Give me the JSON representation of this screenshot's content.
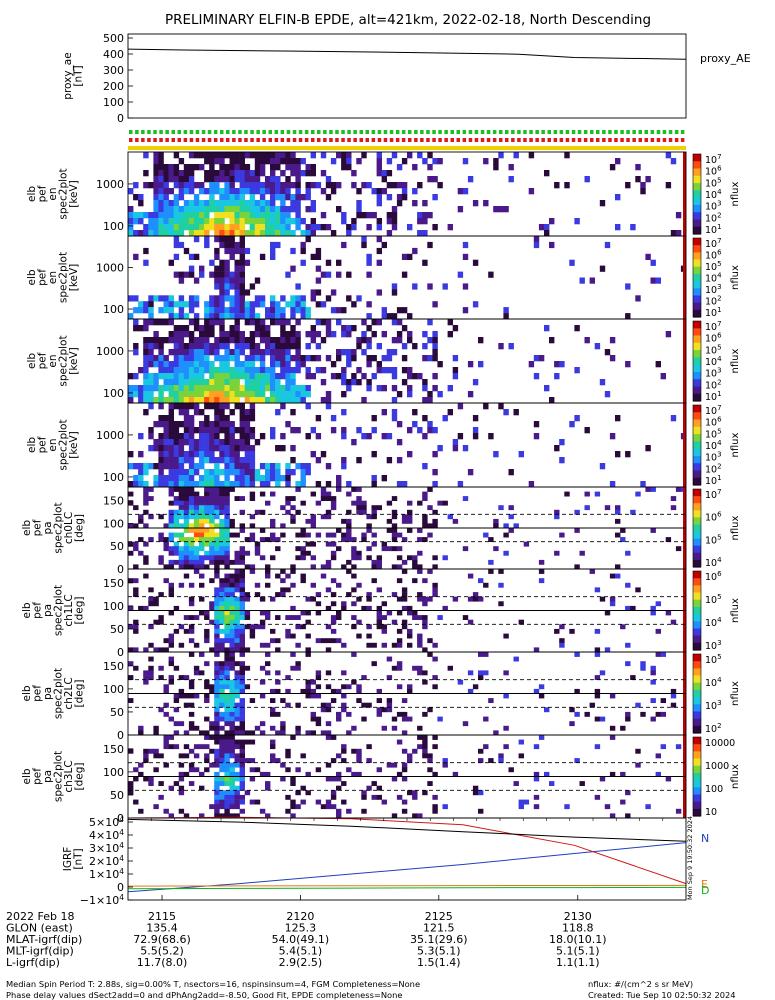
{
  "title": "PRELIMINARY ELFIN-B EPDE, alt=421km, 2022-02-18, North Descending",
  "colors": {
    "fg": "#000000",
    "ae_line": "#000000",
    "bt_blue": "#1f3fc0",
    "bt_red": "#d01818",
    "bt_green": "#10b020",
    "bt_orange": "#e07b10",
    "flag_green": "#18c020",
    "flag_red": "#e01818",
    "flag_yellow": "#f0d000"
  },
  "colormap": [
    "#ffffff",
    "#2a0a3a",
    "#4a1a8a",
    "#3a3ae0",
    "#1f8fff",
    "#19c7e0",
    "#21d0a0",
    "#7ad33a",
    "#f0e020",
    "#ffa020",
    "#ff4a10",
    "#c00000"
  ],
  "flags": {
    "green_count": 92,
    "red_count": 92
  },
  "chart_data": [
    {
      "id": "ae",
      "type": "line",
      "ylabel_lines": [
        "proxy_ae",
        "[nT]"
      ],
      "yticks": [
        "500",
        "400",
        "300",
        "200",
        "100",
        "0"
      ],
      "ylim": [
        0,
        500
      ],
      "x": [
        0,
        0.1,
        0.3,
        0.5,
        0.7,
        0.8,
        1.0
      ],
      "values": [
        410,
        405,
        398,
        390,
        380,
        360,
        350
      ],
      "legend": "proxy_AE"
    },
    {
      "id": "en1",
      "type": "heatmap",
      "ylabel_lines": [
        "elb",
        "pef",
        "en",
        "spec2plot",
        "[keV]"
      ],
      "yticks": [
        "1000",
        "100"
      ],
      "ylog": true,
      "cbar_ticks": [
        "10^7",
        "10^6",
        "10^5",
        "10^4",
        "10^3",
        "10^2",
        "10^1"
      ],
      "cbar_label": "nflux",
      "intensity": 1.0,
      "core": [
        0.04,
        0.3
      ]
    },
    {
      "id": "en2",
      "type": "heatmap",
      "ylabel_lines": [
        "elb",
        "pef",
        "en",
        "spec2plot",
        "[keV]"
      ],
      "yticks": [
        "1000",
        "100"
      ],
      "ylog": true,
      "cbar_ticks": [
        "10^7",
        "10^6",
        "10^5",
        "10^4",
        "10^3",
        "10^2",
        "10^1"
      ],
      "cbar_label": "nflux",
      "intensity": 0.45,
      "core": [
        0.15,
        0.2
      ]
    },
    {
      "id": "en3",
      "type": "heatmap",
      "ylabel_lines": [
        "elb",
        "pef",
        "en",
        "spec2plot",
        "[keV]"
      ],
      "yticks": [
        "1000",
        "100"
      ],
      "ylog": true,
      "cbar_ticks": [
        "10^7",
        "10^6",
        "10^5",
        "10^4",
        "10^3",
        "10^2",
        "10^1"
      ],
      "cbar_label": "nflux",
      "intensity": 1.0,
      "core": [
        0.02,
        0.3
      ]
    },
    {
      "id": "en4",
      "type": "heatmap",
      "ylabel_lines": [
        "elb",
        "pef",
        "en",
        "spec2plot",
        "[keV]"
      ],
      "yticks": [
        "1000",
        "100"
      ],
      "ylog": true,
      "cbar_ticks": [
        "10^7",
        "10^6",
        "10^5",
        "10^4",
        "10^3",
        "10^2",
        "10^1"
      ],
      "cbar_label": "nflux",
      "intensity": 0.5,
      "core": [
        0.05,
        0.22
      ]
    },
    {
      "id": "pa0",
      "type": "heatmap",
      "ylabel_lines": [
        "elb",
        "pef",
        "pa",
        "spec2plot",
        "ch0LC",
        "[deg]"
      ],
      "yticks": [
        "150",
        "100",
        "50",
        "0"
      ],
      "ylim": [
        0,
        180
      ],
      "cbar_ticks": [
        "10^7",
        "10^6",
        "10^5",
        "10^4"
      ],
      "cbar_label": "nflux",
      "intensity": 0.9,
      "core": [
        0.07,
        0.18
      ]
    },
    {
      "id": "pa1",
      "type": "heatmap",
      "ylabel_lines": [
        "elb",
        "pef",
        "pa",
        "spec2plot",
        "ch1LC",
        "[deg]"
      ],
      "yticks": [
        "150",
        "100",
        "50",
        "0"
      ],
      "ylim": [
        0,
        180
      ],
      "cbar_ticks": [
        "10^6",
        "10^5",
        "10^4",
        "10^3"
      ],
      "cbar_label": "nflux",
      "intensity": 0.75,
      "core": [
        0.15,
        0.2
      ]
    },
    {
      "id": "pa2",
      "type": "heatmap",
      "ylabel_lines": [
        "elb",
        "pef",
        "pa",
        "spec2plot",
        "ch2LC",
        "[deg]"
      ],
      "yticks": [
        "150",
        "100",
        "50",
        "0"
      ],
      "ylim": [
        0,
        180
      ],
      "cbar_ticks": [
        "10^5",
        "10^4",
        "10^3",
        "10^2"
      ],
      "cbar_label": "nflux",
      "intensity": 0.65,
      "core": [
        0.15,
        0.2
      ]
    },
    {
      "id": "pa3",
      "type": "heatmap",
      "ylabel_lines": [
        "elb",
        "pef",
        "pa",
        "spec2plot",
        "ch3LC",
        "[deg]"
      ],
      "yticks": [
        "150",
        "100",
        "50",
        "0"
      ],
      "ylim": [
        0,
        180
      ],
      "cbar_ticks": [
        "10000",
        "1000",
        "100",
        "10"
      ],
      "cbar_label": "nflux",
      "intensity": 0.6,
      "core": [
        0.15,
        0.2
      ]
    },
    {
      "id": "bt",
      "type": "line",
      "ylabel_lines": [
        "IGRF",
        "[nT]"
      ],
      "yticks": [
        "5×10^4",
        "4×10^4",
        "3×10^4",
        "2×10^4",
        "1×10^4",
        "0",
        "−1×10^4"
      ],
      "ylim": [
        -10000,
        50000
      ],
      "x": [
        0,
        0.2,
        0.4,
        0.6,
        0.8,
        1.0
      ],
      "series": [
        {
          "name": "N",
          "values": [
            -4000,
            2000,
            9000,
            16000,
            24000,
            32000
          ],
          "color": "#1f3fc0"
        },
        {
          "name": "",
          "values": [
            50000,
            50500,
            49500,
            45000,
            30000,
            2000
          ],
          "color": "#d01818"
        },
        {
          "name": "E",
          "values": [
            200,
            300,
            400,
            500,
            600,
            700
          ],
          "color": "#e07b10"
        },
        {
          "name": "D",
          "values": [
            -1800,
            -1500,
            -1300,
            -1000,
            -900,
            -800
          ],
          "color": "#10b020"
        },
        {
          "name": "",
          "values": [
            49000,
            47000,
            44000,
            40000,
            36000,
            33000
          ],
          "color": "#000000"
        }
      ],
      "legend_letters": [
        "N",
        "E",
        "D"
      ],
      "stamp": "Mon Sep  9 19:50:32 2024"
    }
  ],
  "xaxis": {
    "row_labels": [
      "2022 Feb 18",
      "GLON (east)",
      "MLAT-igrf(dip)",
      "MLT-igrf(dip)",
      "L-igrf(dip)"
    ],
    "columns": [
      [
        "2115",
        "135.4",
        "72.9(68.6)",
        "5.5(5.2)",
        "11.7(8.0)"
      ],
      [
        "2120",
        "125.3",
        "54.0(49.1)",
        "5.4(5.1)",
        "2.9(2.5)"
      ],
      [
        "2125",
        "121.5",
        "35.1(29.6)",
        "5.3(5.1)",
        "1.5(1.4)"
      ],
      [
        "2130",
        "118.8",
        "18.0(10.1)",
        "5.1(5.1)",
        "1.1(1.1)"
      ]
    ],
    "tick_fracs": [
      0.061,
      0.309,
      0.557,
      0.806
    ]
  },
  "footer": {
    "line1": "Median Spin Period T: 2.88s, sig=0.00% T, nsectors=16, nspinsinsum=4, FGM Completeness=None",
    "line2": "Phase delay values dSect2add=0 and dPhAng2add=-8.50, Good Fit, EPDE completeness=None",
    "units": "nflux: #/(cm^2 s sr MeV)",
    "created": "Created: Tue Sep 10 02:50:32 2024"
  }
}
